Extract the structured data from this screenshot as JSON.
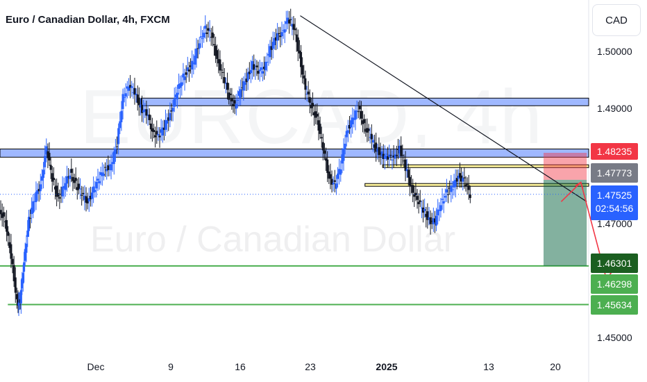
{
  "header": {
    "title": "Euro / Canadian Dollar, 4h, FXCM",
    "currency": "CAD"
  },
  "watermark": {
    "symbol": "EURCAD, 4h",
    "name": "Euro / Canadian Dollar"
  },
  "chart_data": {
    "type": "candlestick",
    "symbol": "EURCAD",
    "interval": "4h",
    "source": "FXCM",
    "y_axis": {
      "ticks": [
        "1.50000",
        "1.49000",
        "1.47000",
        "1.45000"
      ],
      "range": [
        1.4485,
        1.5067
      ]
    },
    "x_axis": {
      "ticks": [
        {
          "label": "Dec",
          "bold": false
        },
        {
          "label": "9",
          "bold": false
        },
        {
          "label": "16",
          "bold": false
        },
        {
          "label": "23",
          "bold": false
        },
        {
          "label": "2025",
          "bold": true
        },
        {
          "label": "13",
          "bold": false
        },
        {
          "label": "20",
          "bold": false
        }
      ]
    },
    "price_series": [
      [
        0,
        1.4729
      ],
      [
        0.3,
        1.4703
      ],
      [
        0.6,
        1.4648
      ],
      [
        0.9,
        1.4568
      ],
      [
        1.05,
        1.4568
      ],
      [
        1.25,
        1.464
      ],
      [
        1.5,
        1.4708
      ],
      [
        1.8,
        1.4745
      ],
      [
        2.1,
        1.477
      ],
      [
        2.4,
        1.483
      ],
      [
        2.7,
        1.478
      ],
      [
        3.0,
        1.4745
      ],
      [
        3.3,
        1.4765
      ],
      [
        3.6,
        1.479
      ],
      [
        3.9,
        1.477
      ],
      [
        4.2,
        1.4752
      ],
      [
        4.5,
        1.474
      ],
      [
        4.8,
        1.476
      ],
      [
        5.1,
        1.478
      ],
      [
        5.4,
        1.4798
      ],
      [
        5.7,
        1.48
      ],
      [
        6.0,
        1.484
      ],
      [
        6.3,
        1.492
      ],
      [
        6.6,
        1.4935
      ],
      [
        6.9,
        1.4928
      ],
      [
        7.2,
        1.49
      ],
      [
        7.5,
        1.489
      ],
      [
        7.8,
        1.4862
      ],
      [
        8.1,
        1.485
      ],
      [
        8.4,
        1.4868
      ],
      [
        8.7,
        1.489
      ],
      [
        9.0,
        1.492
      ],
      [
        9.3,
        1.495
      ],
      [
        9.6,
        1.4965
      ],
      [
        9.9,
        1.4978
      ],
      [
        10.2,
        1.5015
      ],
      [
        10.5,
        1.5035
      ],
      [
        10.8,
        1.5025
      ],
      [
        11.1,
        1.4985
      ],
      [
        11.4,
        1.4955
      ],
      [
        11.7,
        1.492
      ],
      [
        12.0,
        1.4905
      ],
      [
        12.3,
        1.493
      ],
      [
        12.6,
        1.495
      ],
      [
        12.9,
        1.4975
      ],
      [
        13.2,
        1.496
      ],
      [
        13.5,
        1.497
      ],
      [
        13.8,
        1.5
      ],
      [
        14.1,
        1.502
      ],
      [
        14.4,
        1.503
      ],
      [
        14.7,
        1.505
      ],
      [
        15.0,
        1.504
      ],
      [
        15.3,
        1.499
      ],
      [
        15.6,
        1.493
      ],
      [
        15.9,
        1.4905
      ],
      [
        16.2,
        1.488
      ],
      [
        16.5,
        1.483
      ],
      [
        16.8,
        1.4782
      ],
      [
        17.1,
        1.4768
      ],
      [
        17.4,
        1.48
      ],
      [
        17.7,
        1.486
      ],
      [
        18.0,
        1.488
      ],
      [
        18.3,
        1.49
      ],
      [
        18.6,
        1.487
      ],
      [
        18.9,
        1.485
      ],
      [
        19.2,
        1.483
      ],
      [
        19.5,
        1.482
      ],
      [
        19.8,
        1.4815
      ],
      [
        20.1,
        1.4818
      ],
      [
        20.4,
        1.483
      ],
      [
        20.7,
        1.4798
      ],
      [
        21.0,
        1.4765
      ],
      [
        21.3,
        1.474
      ],
      [
        21.6,
        1.4727
      ],
      [
        21.9,
        1.4708
      ],
      [
        22.2,
        1.4705
      ],
      [
        22.5,
        1.4738
      ],
      [
        22.8,
        1.4755
      ],
      [
        23.1,
        1.4765
      ],
      [
        23.4,
        1.4785
      ],
      [
        23.7,
        1.4775
      ],
      [
        24.0,
        1.4752
      ]
    ],
    "price_range_x": [
      0,
      30
    ],
    "levels": [
      {
        "type": "zone",
        "low": 1.4904,
        "high": 1.4917,
        "from": 7.2,
        "to": 30
      },
      {
        "type": "zone",
        "low": 1.4816,
        "high": 1.483,
        "from": 0,
        "to": 30
      },
      {
        "type": "zone",
        "low": 1.48,
        "high": 1.4803,
        "from": 19.5,
        "to": 30
      },
      {
        "type": "zone",
        "low": 1.4767,
        "high": 1.4771,
        "from": 18.6,
        "to": 30
      },
      {
        "type": "line",
        "value": 1.463,
        "from": 0,
        "to": 30,
        "color": "#4caf50"
      },
      {
        "type": "line",
        "value": 1.4564,
        "from": 0.4,
        "to": 30,
        "color": "#4caf50"
      }
    ],
    "trendline": {
      "from": [
        15.3,
        1.5058
      ],
      "to": [
        29.9,
        1.474
      ]
    },
    "trade": {
      "stop_high": 1.48235,
      "entry": 1.47773,
      "target": 1.46301,
      "from": 27.7,
      "to": 29.9
    },
    "projection": [
      [
        28.6,
        1.474
      ],
      [
        29.6,
        1.4773
      ],
      [
        30.9,
        1.4608
      ]
    ],
    "last_price": 1.47525,
    "price_labels": [
      {
        "text": "1.48235",
        "value": 1.48235,
        "color": "#f23645"
      },
      {
        "text": "1.47773",
        "value": 1.47773,
        "color": "#787b86"
      },
      {
        "text": "1.47525",
        "value": 1.47525,
        "color": "#2962ff",
        "countdown": "02:54:56"
      },
      {
        "text": "1.46301",
        "value": 1.46301,
        "color": "#1b5e20"
      },
      {
        "text": "1.46298",
        "value": 1.46298,
        "color": "#4caf50"
      },
      {
        "text": "1.45634",
        "value": 1.45634,
        "color": "#4caf50"
      }
    ]
  }
}
